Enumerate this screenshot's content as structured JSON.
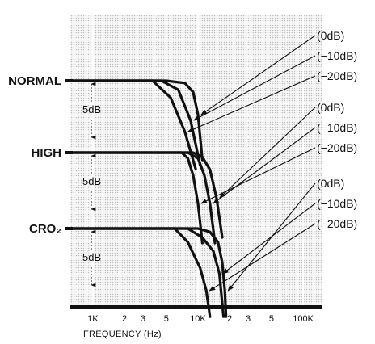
{
  "chart_data": {
    "type": "line",
    "x_scale": "log",
    "xlim": [
      600,
      150000
    ],
    "xlabel": "FREQUENCY (Hz)",
    "x_ticks": [
      {
        "value": 1000,
        "label": "1K"
      },
      {
        "value": 2000,
        "label": "2"
      },
      {
        "value": 3000,
        "label": "3"
      },
      {
        "value": 5000,
        "label": "5"
      },
      {
        "value": 10000,
        "label": "10K"
      },
      {
        "value": 20000,
        "label": "2"
      },
      {
        "value": 30000,
        "label": "3"
      },
      {
        "value": 50000,
        "label": "5"
      },
      {
        "value": 100000,
        "label": "100K"
      }
    ],
    "grid": true,
    "scale_marker": {
      "label": "5dB",
      "value_db": 5
    },
    "groups": [
      {
        "tape": "NORMAL",
        "series": [
          {
            "name": "(0dB)",
            "points": [
              [
                600,
                0
              ],
              [
                5000,
                0
              ],
              [
                7500,
                -0.2
              ],
              [
                9000,
                -1
              ],
              [
                10000,
                -3
              ],
              [
                11000,
                -7
              ]
            ]
          },
          {
            "name": "(−10dB)",
            "points": [
              [
                600,
                0
              ],
              [
                4500,
                0
              ],
              [
                6500,
                -0.8
              ],
              [
                8500,
                -3.5
              ],
              [
                10500,
                -7.5
              ]
            ]
          },
          {
            "name": "(−20dB)",
            "points": [
              [
                600,
                0
              ],
              [
                3700,
                0
              ],
              [
                5500,
                -1.5
              ],
              [
                7500,
                -4.5
              ],
              [
                9500,
                -7.8
              ]
            ]
          }
        ]
      },
      {
        "tape": "HIGH",
        "series": [
          {
            "name": "(0dB)",
            "points": [
              [
                600,
                0
              ],
              [
                9000,
                0
              ],
              [
                11000,
                -0.4
              ],
              [
                13000,
                -1.5
              ],
              [
                15000,
                -4
              ],
              [
                17000,
                -7.5
              ]
            ]
          },
          {
            "name": "(−10dB)",
            "points": [
              [
                600,
                0
              ],
              [
                8000,
                0
              ],
              [
                10000,
                -0.5
              ],
              [
                11500,
                -2
              ],
              [
                13000,
                -4.5
              ],
              [
                14500,
                -8
              ]
            ]
          },
          {
            "name": "(−20dB)",
            "points": [
              [
                600,
                0
              ],
              [
                7000,
                0
              ],
              [
                8000,
                -0.5
              ],
              [
                9000,
                -2
              ],
              [
                10000,
                -4.5
              ],
              [
                11000,
                -8
              ]
            ]
          }
        ]
      },
      {
        "tape": "CRO₂",
        "series": [
          {
            "name": "(0dB)",
            "points": [
              [
                600,
                0
              ],
              [
                10000,
                0
              ],
              [
                13000,
                -0.3
              ],
              [
                15500,
                -1.2
              ],
              [
                17000,
                -3
              ],
              [
                18000,
                -5.5
              ],
              [
                18500,
                -7.8
              ]
            ]
          },
          {
            "name": "(−10dB)",
            "points": [
              [
                600,
                0
              ],
              [
                8000,
                0
              ],
              [
                11000,
                -0.8
              ],
              [
                14000,
                -2
              ],
              [
                16000,
                -4
              ],
              [
                17500,
                -7.8
              ]
            ]
          },
          {
            "name": "(−20dB)",
            "points": [
              [
                600,
                0
              ],
              [
                6000,
                0
              ],
              [
                8000,
                -1.2
              ],
              [
                10500,
                -3.5
              ],
              [
                12000,
                -5.5
              ],
              [
                13000,
                -7.8
              ]
            ]
          }
        ]
      }
    ]
  }
}
